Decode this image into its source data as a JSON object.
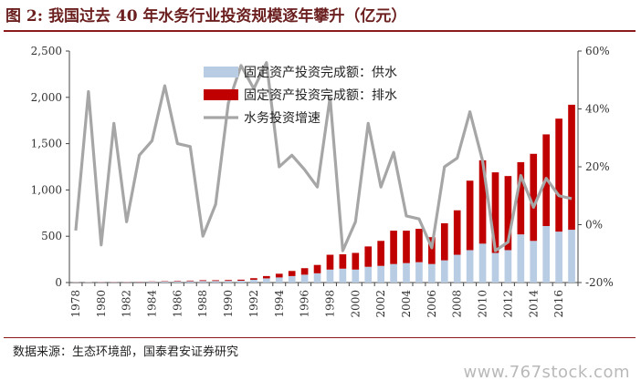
{
  "figure": {
    "title": "图 2:  我国过去 40 年水务行业投资规模逐年攀升（亿元）",
    "source": "数据来源：生态环境部，国泰君安证券研究",
    "watermark": "www.767stock.com"
  },
  "chart_data": {
    "type": "bar",
    "stacked": true,
    "x": [
      1978,
      1979,
      1980,
      1981,
      1982,
      1983,
      1984,
      1985,
      1986,
      1987,
      1988,
      1989,
      1990,
      1991,
      1992,
      1993,
      1994,
      1995,
      1996,
      1997,
      1998,
      1999,
      2000,
      2001,
      2002,
      2003,
      2004,
      2005,
      2006,
      2007,
      2008,
      2009,
      2010,
      2011,
      2012,
      2013,
      2014,
      2015,
      2016,
      2017
    ],
    "x_tick_labels": [
      "1978",
      "1980",
      "1982",
      "1984",
      "1986",
      "1988",
      "1990",
      "1992",
      "1994",
      "1996",
      "1998",
      "2000",
      "2002",
      "2004",
      "2006",
      "2008",
      "2010",
      "2012",
      "2014",
      "2016"
    ],
    "series": [
      {
        "name": "固定资产投资完成额：供水",
        "type": "bar",
        "axis": "left",
        "color": "#b8cce4",
        "values": [
          3,
          4,
          5,
          5,
          6,
          7,
          9,
          11,
          13,
          15,
          17,
          17,
          18,
          20,
          30,
          45,
          55,
          70,
          85,
          100,
          140,
          150,
          140,
          170,
          180,
          200,
          210,
          220,
          200,
          240,
          300,
          350,
          420,
          320,
          350,
          520,
          450,
          610,
          550,
          570
        ]
      },
      {
        "name": "固定资产投资完成额：排水",
        "type": "bar",
        "axis": "left",
        "color": "#c00000",
        "values": [
          1,
          1,
          2,
          2,
          2,
          3,
          3,
          4,
          5,
          6,
          8,
          8,
          9,
          11,
          17,
          25,
          40,
          55,
          70,
          90,
          160,
          155,
          180,
          220,
          270,
          360,
          350,
          360,
          290,
          400,
          480,
          750,
          900,
          870,
          800,
          780,
          940,
          990,
          1220,
          1350
        ]
      },
      {
        "name": "水务投资增速",
        "type": "line",
        "axis": "right",
        "color": "#a6a6a6",
        "values": [
          -2,
          46,
          -7,
          35,
          1,
          24,
          29,
          48,
          28,
          27,
          -4,
          7,
          42,
          55,
          47,
          56,
          20,
          24,
          19,
          13,
          44,
          -9,
          1,
          35,
          13,
          25,
          3,
          2,
          -8,
          20,
          23,
          39,
          22,
          -9,
          -6,
          17,
          6,
          16,
          10,
          9
        ]
      }
    ],
    "y_left": {
      "range": [
        0,
        2500
      ],
      "ticks": [
        0,
        500,
        1000,
        1500,
        2000,
        2500
      ],
      "tick_labels": [
        "0",
        "500",
        "1,000",
        "1,500",
        "2,000",
        "2,500"
      ]
    },
    "y_right": {
      "range": [
        -20,
        60
      ],
      "ticks": [
        -20,
        0,
        20,
        40,
        60
      ],
      "tick_labels": [
        "-20%",
        "0%",
        "20%",
        "40%",
        "60%"
      ]
    },
    "legend_position": "top-center",
    "grid": false
  }
}
